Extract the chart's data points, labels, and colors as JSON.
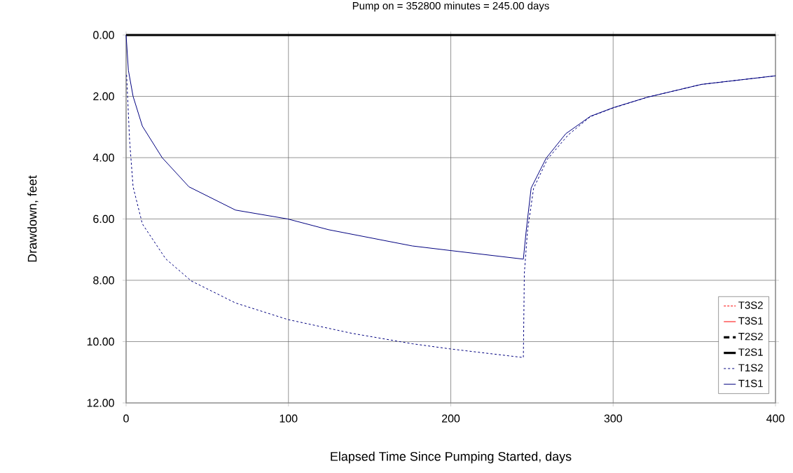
{
  "chart_data": {
    "type": "line",
    "title": "Pump on = 352800 minutes = 245.00 days",
    "xlabel": "Elapsed Time Since Pumping Started, days",
    "ylabel": "Drawdown, feet",
    "xlim": [
      0,
      400
    ],
    "xticks": [
      0,
      100,
      200,
      300,
      400
    ],
    "ylim": [
      12,
      0
    ],
    "yticks": [
      {
        "value": 0,
        "label": "0.00"
      },
      {
        "value": 2,
        "label": "2.00"
      },
      {
        "value": 4,
        "label": "4.00"
      },
      {
        "value": 6,
        "label": "6.00"
      },
      {
        "value": 8,
        "label": "8.00"
      },
      {
        "value": 10,
        "label": "10.00"
      },
      {
        "value": 12,
        "label": "12.00"
      }
    ],
    "grid": true,
    "legend": "bottom right",
    "series": [
      {
        "name": "T3S2",
        "color": "#ff0000",
        "line_style": "dotted"
      },
      {
        "name": "T3S1",
        "color": "#ff0000",
        "line_style": "solid"
      },
      {
        "name": "T2S2",
        "color": "#000000",
        "line_style": "dashed"
      },
      {
        "name": "T2S1",
        "color": "#000000",
        "line_style": "solid",
        "x": [
          0,
          400
        ],
        "values": [
          0,
          0
        ]
      },
      {
        "name": "T1S2",
        "color": "#000080",
        "line_style": "dashed",
        "x": [
          0.3,
          2.15,
          4.3,
          9.3,
          10.0,
          24.4,
          40.1,
          67.4,
          99.6,
          139.1,
          176.3,
          199.9,
          244.7,
          245.3,
          247.3,
          251,
          259.5,
          272.3,
          286,
          300,
          321,
          354.4,
          400
        ],
        "values": [
          1.3,
          3.43,
          4.95,
          6.01,
          6.16,
          7.3,
          8.02,
          8.74,
          9.28,
          9.73,
          10.07,
          10.24,
          10.52,
          7.77,
          6.36,
          5.0,
          4.05,
          3.26,
          2.66,
          2.38,
          2.03,
          1.61,
          1.33
        ]
      },
      {
        "name": "T1S1",
        "color": "#000080",
        "line_style": "solid",
        "x": [
          0,
          1.4,
          4.3,
          10.0,
          22.2,
          38.7,
          67.4,
          99.6,
          124.7,
          176.3,
          199.9,
          244.7,
          246.5,
          249.5,
          258.7,
          270.8,
          286,
          300,
          321,
          354.4,
          400
        ],
        "values": [
          0,
          1.15,
          2.0,
          2.97,
          4.0,
          4.95,
          5.71,
          6.0,
          6.35,
          6.88,
          7.03,
          7.31,
          6.36,
          4.99,
          4.02,
          3.22,
          2.65,
          2.37,
          2.03,
          1.61,
          1.33
        ]
      }
    ]
  }
}
